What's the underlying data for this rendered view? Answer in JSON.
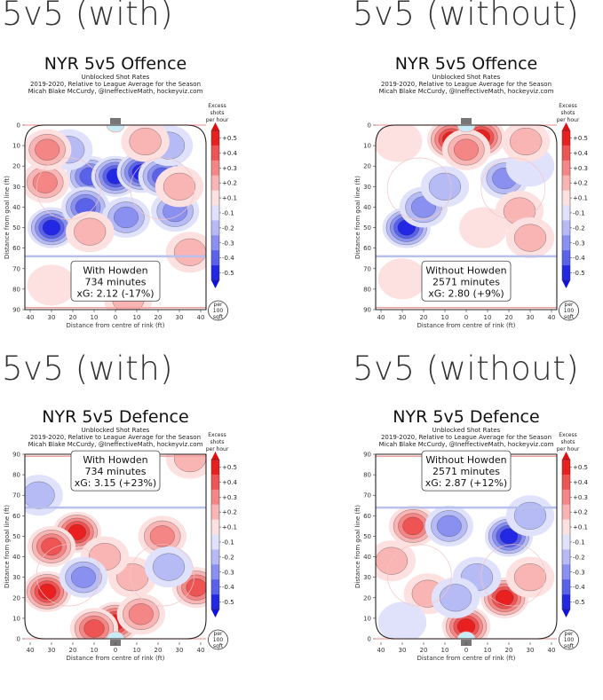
{
  "chart_data": [
    {
      "type": "heatmap",
      "caption": "5v5 (with)",
      "title": "NYR 5v5 Offence",
      "subtitle1": "Unblocked Shot Rates",
      "subtitle2": "2019-2020, Relative to League Average for the Season",
      "subtitle3": "Micah Blake McCurdy, @IneffectiveMath, hockeyviz.com",
      "xlabel": "Distance from centre of rink (ft)",
      "ylabel": "Distance from goal line (ft)",
      "x_ticks": [
        "40",
        "30",
        "20",
        "10",
        "0",
        "10",
        "20",
        "30",
        "40"
      ],
      "y_ticks": [
        "0",
        "10",
        "20",
        "30",
        "40",
        "50",
        "60",
        "70",
        "80",
        "90"
      ],
      "y_range": [
        0,
        90
      ],
      "orientation": "goal-top",
      "annotation": {
        "line1": "With Howden",
        "line2": "734 minutes",
        "line3": "xG: 2.12 (-17%)"
      },
      "colorbar": {
        "title": [
          "Excess",
          "shots",
          "per hour"
        ],
        "ticks": [
          "+0.5",
          "+0.4",
          "+0.3",
          "+0.2",
          "+0.1",
          "-0.1",
          "-0.2",
          "-0.3",
          "-0.4",
          "-0.5"
        ],
        "unit": [
          "per",
          "100",
          "sqft"
        ]
      },
      "blobs": [
        {
          "x": -12,
          "y": 25,
          "v": -0.42
        },
        {
          "x": 0,
          "y": 25,
          "v": -0.48
        },
        {
          "x": 12,
          "y": 23,
          "v": -0.45
        },
        {
          "x": 22,
          "y": 25,
          "v": -0.38
        },
        {
          "x": -30,
          "y": 50,
          "v": -0.48
        },
        {
          "x": -14,
          "y": 40,
          "v": -0.35
        },
        {
          "x": 5,
          "y": 45,
          "v": -0.3
        },
        {
          "x": 28,
          "y": 42,
          "v": -0.25
        },
        {
          "x": -22,
          "y": 12,
          "v": -0.2
        },
        {
          "x": 25,
          "y": 10,
          "v": -0.15
        },
        {
          "x": -33,
          "y": 28,
          "v": 0.32
        },
        {
          "x": -32,
          "y": 12,
          "v": 0.28
        },
        {
          "x": -12,
          "y": 52,
          "v": 0.22
        },
        {
          "x": 14,
          "y": 8,
          "v": 0.18
        },
        {
          "x": 30,
          "y": 30,
          "v": 0.15
        },
        {
          "x": 35,
          "y": 62,
          "v": 0.2
        },
        {
          "x": 6,
          "y": 85,
          "v": 0.22
        },
        {
          "x": -30,
          "y": 78,
          "v": 0.12
        }
      ]
    },
    {
      "type": "heatmap",
      "caption": "5v5 (without)",
      "title": "NYR 5v5 Offence",
      "subtitle1": "Unblocked Shot Rates",
      "subtitle2": "2019-2020, Relative to League Average for the Season",
      "subtitle3": "Micah Blake McCurdy, @IneffectiveMath, hockeyviz.com",
      "xlabel": "Distance from centre of rink (ft)",
      "ylabel": "Distance from goal line (ft)",
      "x_ticks": [
        "40",
        "30",
        "20",
        "10",
        "0",
        "10",
        "20",
        "30",
        "40"
      ],
      "y_ticks": [
        "0",
        "10",
        "20",
        "30",
        "40",
        "50",
        "60",
        "70",
        "80",
        "90"
      ],
      "y_range": [
        0,
        90
      ],
      "orientation": "goal-top",
      "annotation": {
        "line1": "Without Howden",
        "line2": "2571 minutes",
        "line3": "xG: 2.80 (+9%)"
      },
      "colorbar": {
        "title": [
          "Excess",
          "shots",
          "per hour"
        ],
        "ticks": [
          "+0.5",
          "+0.4",
          "+0.3",
          "+0.2",
          "+0.1",
          "-0.1",
          "-0.2",
          "-0.3",
          "-0.4",
          "-0.5"
        ],
        "unit": [
          "per",
          "100",
          "sqft"
        ]
      },
      "blobs": [
        {
          "x": -7,
          "y": 7,
          "v": 0.48
        },
        {
          "x": 7,
          "y": 6,
          "v": 0.45
        },
        {
          "x": 0,
          "y": 12,
          "v": 0.3
        },
        {
          "x": -28,
          "y": 50,
          "v": -0.45
        },
        {
          "x": -20,
          "y": 40,
          "v": -0.3
        },
        {
          "x": -10,
          "y": 30,
          "v": -0.15
        },
        {
          "x": 18,
          "y": 26,
          "v": -0.28
        },
        {
          "x": 30,
          "y": 20,
          "v": -0.12
        },
        {
          "x": 28,
          "y": 8,
          "v": 0.15
        },
        {
          "x": -32,
          "y": 8,
          "v": 0.12
        },
        {
          "x": 25,
          "y": 42,
          "v": 0.18
        },
        {
          "x": 30,
          "y": 55,
          "v": 0.15
        },
        {
          "x": 8,
          "y": 50,
          "v": 0.1
        },
        {
          "x": -30,
          "y": 75,
          "v": 0.1
        }
      ]
    },
    {
      "type": "heatmap",
      "caption": "5v5 (with)",
      "title": "NYR 5v5 Defence",
      "subtitle1": "Unblocked Shot Rates",
      "subtitle2": "2019-2020, Relative to League Average for the Season",
      "subtitle3": "Micah Blake McCurdy, @IneffectiveMath, hockeyviz.com",
      "xlabel": "Distance from centre of rink (ft)",
      "ylabel": "Distance from goal line (ft)",
      "x_ticks": [
        "40",
        "30",
        "20",
        "10",
        "0",
        "10",
        "20",
        "30",
        "40"
      ],
      "y_ticks": [
        "0",
        "10",
        "20",
        "30",
        "40",
        "50",
        "60",
        "70",
        "80",
        "90"
      ],
      "y_range": [
        0,
        90
      ],
      "orientation": "goal-bottom",
      "annotation": {
        "line1": "With Howden",
        "line2": "734 minutes",
        "line3": "xG: 3.15 (+23%)"
      },
      "colorbar": {
        "title": [
          "Excess",
          "shots",
          "per hour"
        ],
        "ticks": [
          "+0.5",
          "+0.4",
          "+0.3",
          "+0.2",
          "+0.1",
          "-0.1",
          "-0.2",
          "-0.3",
          "-0.4",
          "-0.5"
        ],
        "unit": [
          "per",
          "100",
          "sqft"
        ]
      },
      "blobs": [
        {
          "x": -18,
          "y": 52,
          "v": 0.5
        },
        {
          "x": -30,
          "y": 45,
          "v": 0.42
        },
        {
          "x": -32,
          "y": 23,
          "v": 0.45
        },
        {
          "x": 0,
          "y": 8,
          "v": 0.5
        },
        {
          "x": -10,
          "y": 5,
          "v": 0.4
        },
        {
          "x": 12,
          "y": 12,
          "v": 0.3
        },
        {
          "x": 38,
          "y": 25,
          "v": 0.42
        },
        {
          "x": 22,
          "y": 50,
          "v": 0.3
        },
        {
          "x": 8,
          "y": 30,
          "v": 0.2
        },
        {
          "x": -5,
          "y": 40,
          "v": 0.15
        },
        {
          "x": -15,
          "y": 30,
          "v": -0.25
        },
        {
          "x": 25,
          "y": 35,
          "v": -0.2
        },
        {
          "x": -36,
          "y": 70,
          "v": -0.2
        },
        {
          "x": 35,
          "y": 88,
          "v": 0.15
        }
      ]
    },
    {
      "type": "heatmap",
      "caption": "5v5 (without)",
      "title": "NYR 5v5 Defence",
      "subtitle1": "Unblocked Shot Rates",
      "subtitle2": "2019-2020, Relative to League Average for the Season",
      "subtitle3": "Micah Blake McCurdy, @IneffectiveMath, hockeyviz.com",
      "xlabel": "Distance from centre of rink (ft)",
      "ylabel": "Distance from goal line (ft)",
      "x_ticks": [
        "40",
        "30",
        "20",
        "10",
        "0",
        "10",
        "20",
        "30",
        "40"
      ],
      "y_ticks": [
        "0",
        "10",
        "20",
        "30",
        "40",
        "50",
        "60",
        "70",
        "80",
        "90"
      ],
      "y_range": [
        0,
        90
      ],
      "orientation": "goal-bottom",
      "annotation": {
        "line1": "Without Howden",
        "line2": "2571 minutes",
        "line3": "xG: 2.87 (+12%)"
      },
      "colorbar": {
        "title": [
          "Excess",
          "shots",
          "per hour"
        ],
        "ticks": [
          "+0.5",
          "+0.4",
          "+0.3",
          "+0.2",
          "+0.1",
          "-0.1",
          "-0.2",
          "-0.3",
          "-0.4",
          "-0.5"
        ],
        "unit": [
          "per",
          "100",
          "sqft"
        ]
      },
      "blobs": [
        {
          "x": 0,
          "y": 6,
          "v": 0.48
        },
        {
          "x": 18,
          "y": 20,
          "v": 0.45
        },
        {
          "x": -25,
          "y": 55,
          "v": 0.35
        },
        {
          "x": -35,
          "y": 38,
          "v": 0.2
        },
        {
          "x": -18,
          "y": 22,
          "v": 0.18
        },
        {
          "x": 30,
          "y": 30,
          "v": 0.15
        },
        {
          "x": 20,
          "y": 50,
          "v": -0.45
        },
        {
          "x": -8,
          "y": 55,
          "v": -0.3
        },
        {
          "x": 5,
          "y": 30,
          "v": -0.2
        },
        {
          "x": 30,
          "y": 60,
          "v": -0.15
        },
        {
          "x": -30,
          "y": 8,
          "v": -0.12
        },
        {
          "x": -5,
          "y": 20,
          "v": -0.15
        }
      ]
    }
  ]
}
